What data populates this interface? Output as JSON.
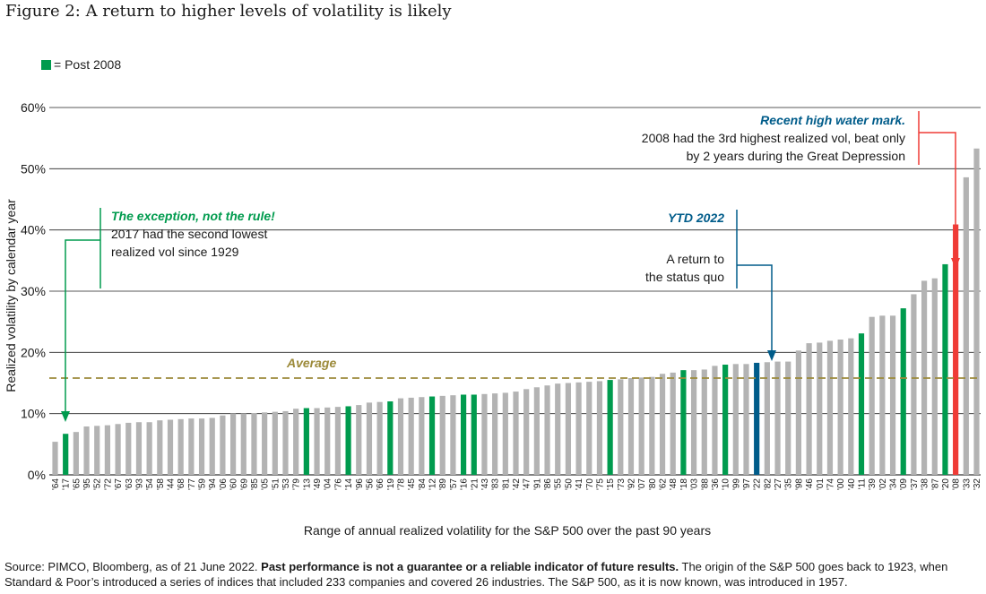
{
  "header": {
    "title": "Figure 2: A return to higher levels of volatility is likely"
  },
  "legend": {
    "label": "= Post 2008",
    "color": "#009b4e"
  },
  "source": {
    "prefix": "Source: PIMCO, Bloomberg, as of 21 June 2022. ",
    "bold": "Past performance is not a guarantee or a reliable indicator of future results.",
    "suffix": " The origin of the S&P 500 goes back to 1923, when Standard & Poor’s introduced a series of indices that included 233 companies and covered 26 industries. The S&P 500, as it is now known, was introduced in 1957."
  },
  "annotations": {
    "exception_title": "The exception, not the rule!",
    "exception_line1": "2017 had the second lowest",
    "exception_line2": "realized vol since 1929",
    "ytd_title": "YTD 2022",
    "ytd_line1": "A return to",
    "ytd_line2": "the status quo",
    "high_title": "Recent high water mark.",
    "high_line1": "2008 had the 3rd highest realized vol, beat only",
    "high_line2": "by 2 years during the Great Depression",
    "average_label": "Average"
  },
  "chart_data": {
    "type": "bar",
    "ylabel": "Realized volatility by calendar year",
    "xlabel": "Range of annual realized volatility for the S&P 500 over the past 90 years",
    "ylim": [
      0,
      60
    ],
    "yticks": [
      "0%",
      "10%",
      "20%",
      "30%",
      "40%",
      "50%",
      "60%"
    ],
    "average": 15.8,
    "colors": {
      "default": "#b3b3b3",
      "post2008": "#009b4e",
      "ytd": "#005c8a",
      "highlight": "#ef3b36",
      "average": "#9c8a3a",
      "exception_text": "#009b4e",
      "ytd_text": "#005c8a",
      "high_text": "#005c8a"
    },
    "categories": [
      "'64",
      "'17",
      "'65",
      "'95",
      "'52",
      "'72",
      "'67",
      "'63",
      "'93",
      "'54",
      "'58",
      "'44",
      "'68",
      "'77",
      "'59",
      "'94",
      "'06",
      "'60",
      "'69",
      "'85",
      "'05",
      "'51",
      "'53",
      "'79",
      "'13",
      "'49",
      "'04",
      "'76",
      "'14",
      "'96",
      "'56",
      "'66",
      "'19",
      "'78",
      "'45",
      "'84",
      "'12",
      "'89",
      "'57",
      "'16",
      "'21",
      "'43",
      "'83",
      "'81",
      "'42",
      "'47",
      "'91",
      "'86",
      "'55",
      "'50",
      "'41",
      "'70",
      "'75",
      "'15",
      "'73",
      "'92",
      "'07",
      "'80",
      "'62",
      "'48",
      "'18",
      "'03",
      "'88",
      "'36",
      "'10",
      "'99",
      "'97",
      "'22",
      "'82",
      "'27",
      "'35",
      "'98",
      "'46",
      "'01",
      "'74",
      "'00",
      "'40",
      "'11",
      "'39",
      "'02",
      "'34",
      "'09",
      "'37",
      "'38",
      "'87",
      "'20",
      "'08",
      "'33",
      "'32"
    ],
    "values": [
      5.4,
      6.7,
      7.0,
      7.9,
      8.0,
      8.1,
      8.3,
      8.5,
      8.6,
      8.6,
      8.9,
      9.0,
      9.1,
      9.2,
      9.2,
      9.3,
      9.7,
      10.0,
      10.0,
      10.1,
      10.2,
      10.3,
      10.4,
      10.8,
      10.9,
      10.9,
      11.0,
      11.1,
      11.2,
      11.4,
      11.8,
      11.9,
      12.0,
      12.5,
      12.6,
      12.7,
      12.8,
      12.9,
      13.0,
      13.1,
      13.1,
      13.2,
      13.3,
      13.4,
      13.6,
      14.0,
      14.3,
      14.6,
      14.9,
      15.0,
      15.1,
      15.2,
      15.3,
      15.5,
      15.6,
      15.8,
      15.9,
      16.0,
      16.5,
      16.7,
      17.1,
      17.1,
      17.2,
      17.8,
      18.0,
      18.1,
      18.1,
      18.3,
      18.4,
      18.5,
      18.5,
      20.3,
      21.5,
      21.6,
      21.9,
      22.1,
      22.3,
      23.1,
      25.8,
      26.0,
      26.0,
      27.2,
      29.5,
      31.7,
      32.1,
      34.4,
      40.9,
      48.6,
      53.3
    ],
    "highlight_years": {
      "post2008": [
        "'17",
        "'13",
        "'14",
        "'19",
        "'12",
        "'16",
        "'21",
        "'15",
        "'18",
        "'10",
        "'11",
        "'09",
        "'20"
      ],
      "ytd": [
        "'22"
      ],
      "highlight": [
        "'08"
      ]
    }
  }
}
